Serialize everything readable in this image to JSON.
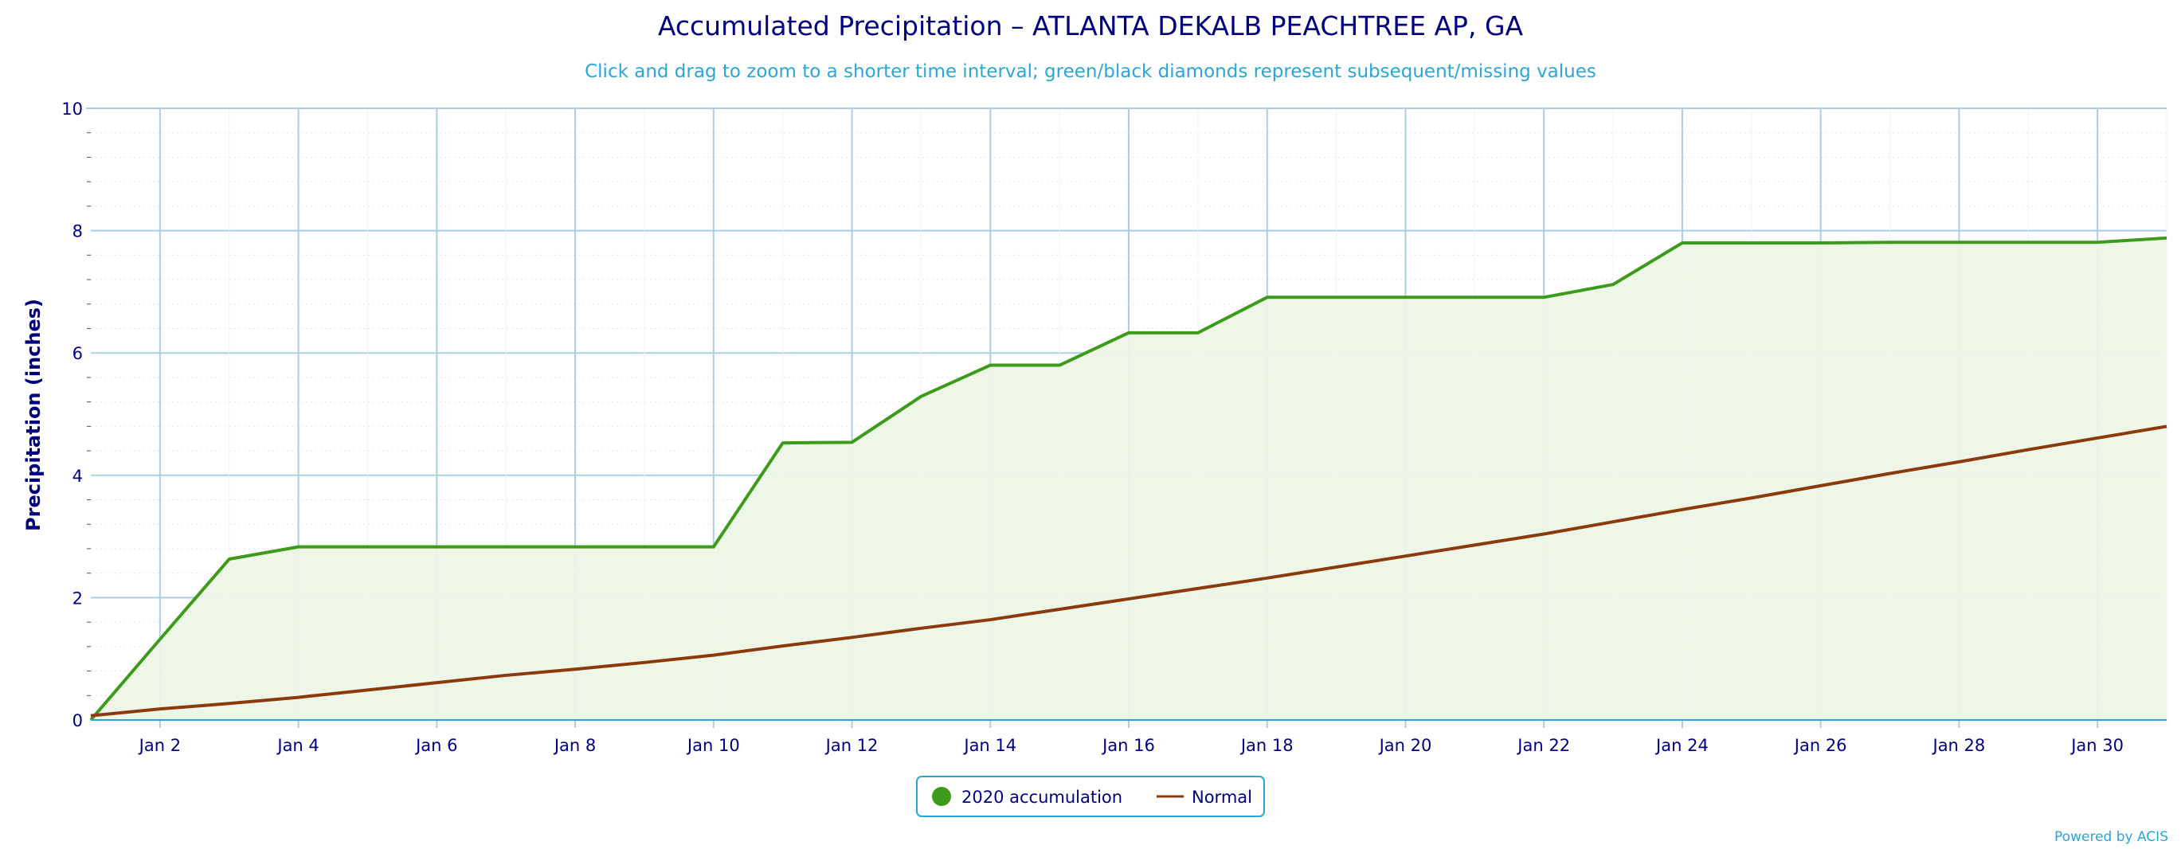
{
  "chart_data": {
    "type": "line",
    "title": "Accumulated Precipitation – ATLANTA DEKALB PEACHTREE AP, GA",
    "subtitle": "Click and drag to zoom to a shorter time interval; green/black diamonds represent subsequent/missing values",
    "ylabel": "Precipitation (inches)",
    "xlabel": "",
    "ylim": [
      0,
      10
    ],
    "xlim": [
      1,
      31
    ],
    "y_ticks": [
      0,
      2,
      4,
      6,
      8,
      10
    ],
    "x_ticks": [
      {
        "day": 2,
        "label": "Jan 2"
      },
      {
        "day": 4,
        "label": "Jan 4"
      },
      {
        "day": 6,
        "label": "Jan 6"
      },
      {
        "day": 8,
        "label": "Jan 8"
      },
      {
        "day": 10,
        "label": "Jan 10"
      },
      {
        "day": 12,
        "label": "Jan 12"
      },
      {
        "day": 14,
        "label": "Jan 14"
      },
      {
        "day": 16,
        "label": "Jan 16"
      },
      {
        "day": 18,
        "label": "Jan 18"
      },
      {
        "day": 20,
        "label": "Jan 20"
      },
      {
        "day": 22,
        "label": "Jan 22"
      },
      {
        "day": 24,
        "label": "Jan 24"
      },
      {
        "day": 26,
        "label": "Jan 26"
      },
      {
        "day": 28,
        "label": "Jan 28"
      },
      {
        "day": 30,
        "label": "Jan 30"
      }
    ],
    "grid": true,
    "legend_position": "bottom-center",
    "series": [
      {
        "name": "2020 accumulation",
        "color": "#3d9b1c",
        "fill": "#edf5e6",
        "x": [
          1,
          2,
          3,
          4,
          5,
          6,
          7,
          8,
          9,
          10,
          11,
          12,
          13,
          14,
          15,
          16,
          17,
          18,
          19,
          20,
          21,
          22,
          23,
          24,
          25,
          26,
          27,
          28,
          29,
          30,
          31
        ],
        "values": [
          0.0,
          1.32,
          2.63,
          2.83,
          2.83,
          2.83,
          2.83,
          2.83,
          2.83,
          2.83,
          4.53,
          4.54,
          5.29,
          5.8,
          5.8,
          6.33,
          6.33,
          6.91,
          6.91,
          6.91,
          6.91,
          6.91,
          7.12,
          7.8,
          7.8,
          7.8,
          7.81,
          7.81,
          7.81,
          7.81,
          7.88
        ]
      },
      {
        "name": "Normal",
        "color": "#8b3a0e",
        "x": [
          1,
          2,
          3,
          4,
          5,
          6,
          7,
          8,
          9,
          10,
          11,
          12,
          13,
          14,
          15,
          16,
          17,
          18,
          19,
          20,
          21,
          22,
          23,
          24,
          25,
          26,
          27,
          28,
          29,
          30,
          31
        ],
        "values": [
          0.07,
          0.18,
          0.27,
          0.37,
          0.49,
          0.61,
          0.73,
          0.83,
          0.94,
          1.06,
          1.21,
          1.35,
          1.5,
          1.64,
          1.81,
          1.98,
          2.15,
          2.32,
          2.5,
          2.68,
          2.86,
          3.04,
          3.24,
          3.44,
          3.63,
          3.83,
          4.03,
          4.22,
          4.42,
          4.61,
          4.8
        ]
      }
    ]
  },
  "credits": "Powered by ACIS"
}
